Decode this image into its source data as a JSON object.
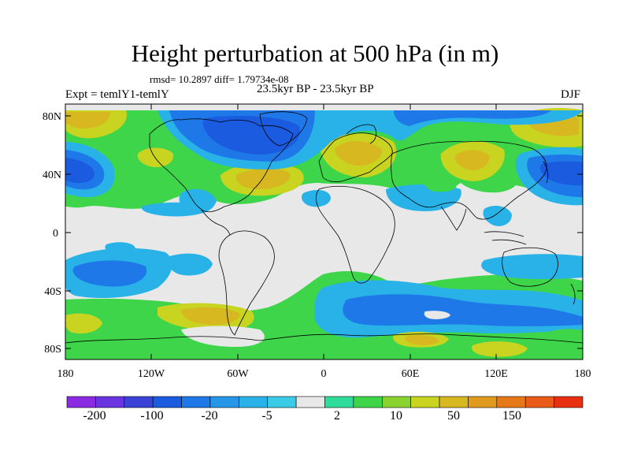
{
  "title": "Height perturbation at 500 hPa (in m)",
  "stats": "rmsd= 10.2897  diff= 1.79734e-08",
  "left_label": "Expt = temlY1-temlY",
  "center_label": "23.5kyr BP - 23.5kyr BP",
  "right_label": "DJF",
  "lat_labels": [
    "80N",
    "40N",
    "0",
    "40S",
    "80S"
  ],
  "lon_labels": [
    "180",
    "120W",
    "60W",
    "0",
    "60E",
    "120E",
    "180"
  ],
  "colorbar": {
    "labels": [
      "-200",
      "-100",
      "-20",
      "-5",
      "2",
      "10",
      "50",
      "150"
    ],
    "colors": [
      "#8a2be2",
      "#6a35e0",
      "#3b42d6",
      "#1a5be0",
      "#1e78e8",
      "#2596e8",
      "#29b2e8",
      "#3bcbe6",
      "#e8e8e8",
      "#30dc9a",
      "#3fd54a",
      "#8ad230",
      "#c8d420",
      "#d8b820",
      "#e09a1e",
      "#e77818",
      "#ea5a18",
      "#e83010"
    ]
  },
  "map_colors": {
    "neutral": "#e8e8e8",
    "ocean_base": "#e8e8e8",
    "coast": "#000000"
  }
}
